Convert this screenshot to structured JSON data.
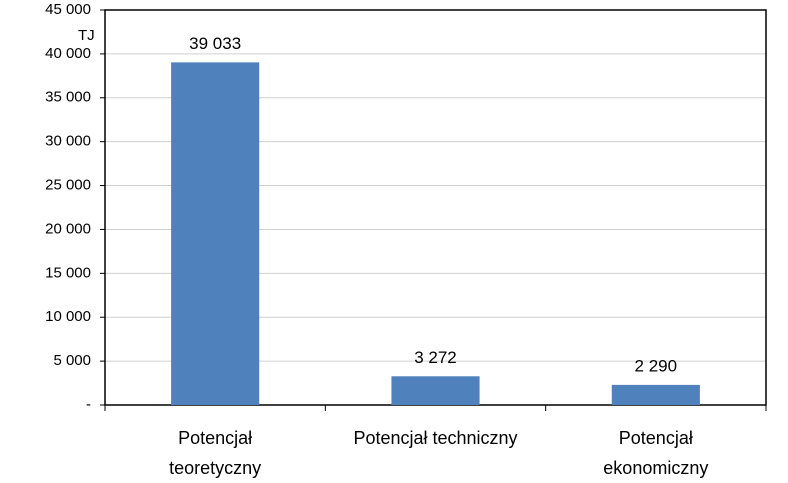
{
  "chart_data": {
    "type": "bar",
    "categories": [
      "Potencjał\nteoretyczny",
      "Potencjał techniczny",
      "Potencjał\nekonomiczny"
    ],
    "values": [
      39033,
      3272,
      2290
    ],
    "value_labels": [
      "39 033",
      "3 272",
      "2 290"
    ],
    "color": "#4f81bd",
    "y_unit": "TJ",
    "ylim": [
      0,
      45000
    ],
    "yticks": [
      {
        "value": 0,
        "label": "-"
      },
      {
        "value": 5000,
        "label": "5 000"
      },
      {
        "value": 10000,
        "label": "10 000"
      },
      {
        "value": 15000,
        "label": "15 000"
      },
      {
        "value": 20000,
        "label": "20 000"
      },
      {
        "value": 25000,
        "label": "25 000"
      },
      {
        "value": 30000,
        "label": "30 000"
      },
      {
        "value": 35000,
        "label": "35 000"
      },
      {
        "value": 40000,
        "label": "40 000"
      },
      {
        "value": 45000,
        "label": "45 000"
      }
    ],
    "grid": true
  }
}
